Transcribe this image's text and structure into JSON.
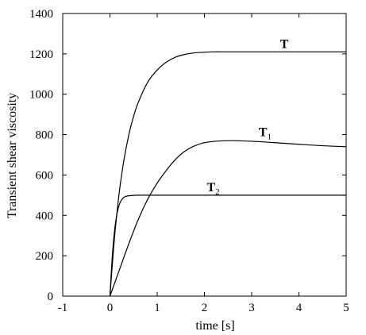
{
  "chart_data": {
    "type": "line",
    "title": "",
    "xlabel": "time [s]",
    "ylabel": "Transient shear viscosity",
    "xlim": [
      -1,
      5
    ],
    "ylim": [
      0,
      1400
    ],
    "xticks": [
      "-1",
      "0",
      "1",
      "2",
      "3",
      "4",
      "5"
    ],
    "yticks": [
      "0",
      "200",
      "400",
      "600",
      "800",
      "1000",
      "1200",
      "1400"
    ],
    "grid": false,
    "legend": "none",
    "series": [
      {
        "name": "T",
        "label_main": "T",
        "label_sub": "",
        "x": [
          0,
          0.1,
          0.2,
          0.3,
          0.4,
          0.5,
          0.6,
          0.8,
          1.0,
          1.2,
          1.4,
          1.6,
          1.8,
          2.0,
          2.2,
          2.5,
          3.0,
          3.5,
          4.0,
          4.5,
          5.0
        ],
        "y": [
          0,
          300,
          520,
          680,
          800,
          890,
          960,
          1060,
          1120,
          1160,
          1185,
          1198,
          1205,
          1208,
          1210,
          1210,
          1210,
          1210,
          1210,
          1210,
          1210
        ]
      },
      {
        "name": "T1",
        "label_main": "T",
        "label_sub": "1",
        "x": [
          0,
          0.2,
          0.4,
          0.6,
          0.8,
          1.0,
          1.2,
          1.4,
          1.6,
          1.8,
          2.0,
          2.3,
          2.6,
          3.0,
          3.5,
          4.0,
          4.5,
          5.0
        ],
        "y": [
          0,
          130,
          260,
          380,
          480,
          560,
          625,
          680,
          720,
          745,
          760,
          768,
          770,
          767,
          760,
          752,
          745,
          740
        ]
      },
      {
        "name": "T2",
        "label_main": "T",
        "label_sub": "2",
        "x": [
          0,
          0.05,
          0.1,
          0.15,
          0.2,
          0.25,
          0.3,
          0.35,
          0.4,
          0.5,
          0.6,
          0.8,
          1.0,
          2.0,
          3.0,
          4.0,
          5.0
        ],
        "y": [
          0,
          200,
          330,
          410,
          455,
          478,
          490,
          495,
          497,
          499,
          500,
          500,
          500,
          500,
          500,
          500,
          500
        ]
      }
    ]
  }
}
